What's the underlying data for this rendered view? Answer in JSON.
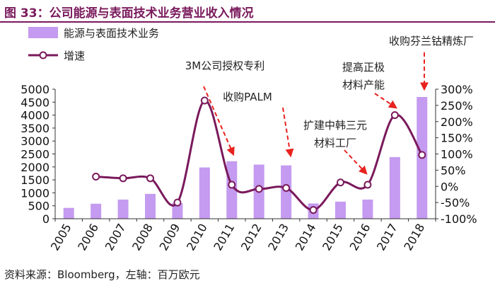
{
  "header": {
    "title": "图 33：公司能源与表面技术业务营业收入情况"
  },
  "footer": {
    "source": "资料来源：Bloomberg，左轴：百万欧元"
  },
  "colors": {
    "bar": "#c49bf0",
    "line": "#7a1a5c",
    "marker_fill": "#ffffff",
    "arrow": "#e8221e",
    "title": "#7a1a5c"
  },
  "chart_data": {
    "type": "bar",
    "categories": [
      "2005",
      "2006",
      "2007",
      "2008",
      "2009",
      "2010",
      "2011",
      "2012",
      "2013",
      "2014",
      "2015",
      "2016",
      "2017",
      "2018"
    ],
    "series": [
      {
        "name": "能源与表面技术业务",
        "axis": "left",
        "type": "bar",
        "values": [
          420,
          580,
          740,
          960,
          600,
          1980,
          2220,
          2090,
          2060,
          590,
          660,
          740,
          2380,
          4700
        ]
      },
      {
        "name": "增速",
        "axis": "right",
        "type": "line",
        "values": [
          null,
          30,
          25,
          25,
          -50,
          265,
          5,
          -8,
          -5,
          -73,
          12,
          5,
          220,
          97
        ]
      }
    ],
    "ylim_left": [
      0,
      5000
    ],
    "yticks_left": [
      "0",
      "500",
      "1000",
      "1500",
      "2000",
      "2500",
      "3000",
      "3500",
      "4000",
      "4500",
      "5000"
    ],
    "ylim_right": [
      -100,
      300
    ],
    "yticks_right": [
      "-100%",
      "-50%",
      "0%",
      "50%",
      "100%",
      "150%",
      "200%",
      "250%",
      "300%"
    ],
    "legend": {
      "position": "top-left",
      "bar_label": "能源与表面技术业务",
      "line_label": "增速"
    },
    "annotations": [
      {
        "id": "ann-3m",
        "lines": [
          "3M公司授权专利"
        ],
        "target_year": "2011"
      },
      {
        "id": "ann-palm",
        "lines": [
          "收购PALM"
        ],
        "target_year": "2013"
      },
      {
        "id": "ann-expand",
        "lines": [
          "扩建中韩三元",
          "材料工厂"
        ],
        "target_year": "2016"
      },
      {
        "id": "ann-capacity",
        "lines": [
          "提高正极",
          "材料产能"
        ],
        "target_year": "2017"
      },
      {
        "id": "ann-acquire",
        "lines": [
          "收购芬兰钴精炼厂"
        ],
        "target_year": "2018"
      }
    ]
  }
}
